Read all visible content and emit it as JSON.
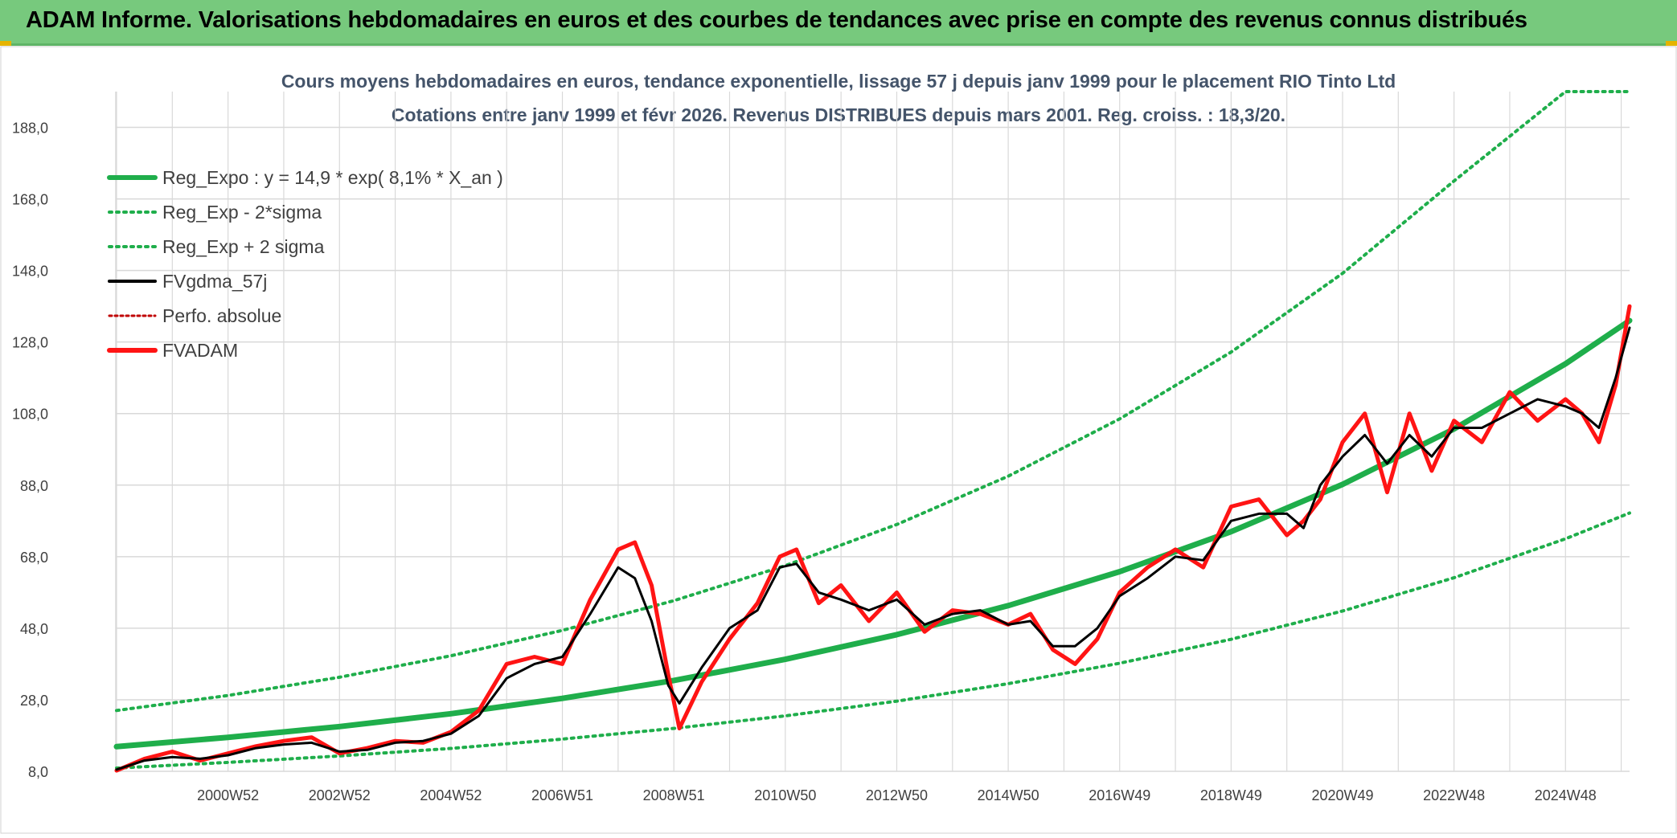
{
  "banner": {
    "title": "ADAM Informe. Valorisations hebdomadaires en euros et des courbes de tendances avec prise en compte des revenus connus distribués"
  },
  "colors": {
    "banner": "#77c97d",
    "reg_expo": "#1fae4b",
    "fvgdma": "#000000",
    "fvadam": "#ff1414",
    "perfo": "#c00000",
    "grid": "#d9d9d9"
  },
  "chart_data": {
    "type": "line",
    "title": "Cours moyens hebdomadaires en euros, tendance exponentielle, lissage 57 j depuis janv 1999 pour le placement RIO Tinto Ltd",
    "subtitle": "Cotations entre janv 1999 et févr 2026. Revenus DISTRIBUES depuis mars 2001. Reg. croiss. : 18,3/20.",
    "xlabel": "",
    "ylabel": "",
    "xlim": [
      1999.0,
      2026.15
    ],
    "ylim": [
      8.0,
      198.0
    ],
    "y_ticks": [
      "8,0",
      "28,0",
      "48,0",
      "68,0",
      "88,0",
      "108,0",
      "128,0",
      "148,0",
      "168,0",
      "188,0"
    ],
    "y_tick_values": [
      8,
      28,
      48,
      68,
      88,
      108,
      128,
      148,
      168,
      188
    ],
    "x_tick_labels": [
      "2000W52",
      "2002W52",
      "2004W52",
      "2006W51",
      "2008W51",
      "2010W50",
      "2012W50",
      "2014W50",
      "2016W49",
      "2018W49",
      "2020W49",
      "2022W48",
      "2024W48"
    ],
    "x_tick_years": [
      2001.0,
      2003.0,
      2005.0,
      2007.0,
      2009.0,
      2011.0,
      2013.0,
      2015.0,
      2017.0,
      2019.0,
      2021.0,
      2023.0,
      2025.0
    ],
    "grid": true,
    "legend_position": "top-left",
    "legend": [
      {
        "label": "Reg_Expo : y = 14,9 * exp( 8,1% *  X_an )",
        "style": "thick-green"
      },
      {
        "label": "Reg_Exp - 2*sigma",
        "style": "dotted-green"
      },
      {
        "label": "Reg_Exp + 2 sigma",
        "style": "dotted-green"
      },
      {
        "label": "FVgdma_57j",
        "style": "black"
      },
      {
        "label": "Perfo. absolue",
        "style": "dotted-red"
      },
      {
        "label": "FVADAM",
        "style": "thick-red"
      }
    ],
    "series": [
      {
        "name": "Reg_Expo",
        "x": [
          1999.0,
          2001.0,
          2003.0,
          2005.0,
          2007.0,
          2009.0,
          2011.0,
          2013.0,
          2015.0,
          2017.0,
          2019.0,
          2021.0,
          2023.0,
          2025.0,
          2026.15
        ],
        "values": [
          14.9,
          17.5,
          20.5,
          24.1,
          28.4,
          33.4,
          39.3,
          46.2,
          54.3,
          63.8,
          75.0,
          88.2,
          103.7,
          121.9,
          134.0
        ]
      },
      {
        "name": "Reg_Exp - 2*sigma",
        "x": [
          1999.0,
          2001.0,
          2003.0,
          2005.0,
          2007.0,
          2009.0,
          2011.0,
          2013.0,
          2015.0,
          2017.0,
          2019.0,
          2021.0,
          2023.0,
          2025.0,
          2026.15
        ],
        "values": [
          8.9,
          10.5,
          12.3,
          14.4,
          17.0,
          20.0,
          23.5,
          27.6,
          32.5,
          38.2,
          44.9,
          52.8,
          62.1,
          73.0,
          80.2
        ]
      },
      {
        "name": "Reg_Exp + 2 sigma",
        "x": [
          1999.0,
          2001.0,
          2003.0,
          2005.0,
          2007.0,
          2009.0,
          2011.0,
          2013.0,
          2015.0,
          2017.0,
          2019.0,
          2021.0,
          2023.0,
          2025.0,
          2026.15
        ],
        "values": [
          25.0,
          29.2,
          34.3,
          40.3,
          47.4,
          55.7,
          65.5,
          77.0,
          90.5,
          106.5,
          125.2,
          147.2,
          173.0,
          198.0,
          198.0
        ]
      },
      {
        "name": "FVgdma_57j",
        "x": [
          1999.0,
          1999.5,
          2000.0,
          2000.5,
          2001.0,
          2001.5,
          2002.0,
          2002.5,
          2003.0,
          2003.5,
          2004.0,
          2004.5,
          2005.0,
          2005.5,
          2006.0,
          2006.5,
          2007.0,
          2007.5,
          2008.0,
          2008.3,
          2008.6,
          2008.9,
          2009.1,
          2009.5,
          2010.0,
          2010.5,
          2010.9,
          2011.2,
          2011.6,
          2012.0,
          2012.5,
          2013.0,
          2013.5,
          2014.0,
          2014.5,
          2015.0,
          2015.4,
          2015.8,
          2016.2,
          2016.6,
          2017.0,
          2017.5,
          2018.0,
          2018.5,
          2019.0,
          2019.5,
          2020.0,
          2020.3,
          2020.6,
          2021.0,
          2021.4,
          2021.8,
          2022.2,
          2022.6,
          2023.0,
          2023.5,
          2024.0,
          2024.5,
          2025.0,
          2025.3,
          2025.6,
          2025.9,
          2026.15
        ],
        "values": [
          8.5,
          11.0,
          12.0,
          11.5,
          12.5,
          14.5,
          15.5,
          16.0,
          13.5,
          14.0,
          16.0,
          16.5,
          18.5,
          23.5,
          34.0,
          38.0,
          40.0,
          52.0,
          65.0,
          62.0,
          50.0,
          32.0,
          27.0,
          37.0,
          48.0,
          53.0,
          65.0,
          66.0,
          58.0,
          56.0,
          53.0,
          56.0,
          49.0,
          52.0,
          53.0,
          49.0,
          50.0,
          43.0,
          43.0,
          48.0,
          57.0,
          62.0,
          68.0,
          67.0,
          78.0,
          80.0,
          80.0,
          76.0,
          88.0,
          96.0,
          102.0,
          94.0,
          102.0,
          96.0,
          104.0,
          104.0,
          108.0,
          112.0,
          110.0,
          108.0,
          104.0,
          118.0,
          132.0
        ]
      },
      {
        "name": "FVADAM",
        "x": [
          1999.0,
          1999.5,
          2000.0,
          2000.5,
          2001.0,
          2001.5,
          2002.0,
          2002.5,
          2003.0,
          2003.5,
          2004.0,
          2004.5,
          2005.0,
          2005.5,
          2006.0,
          2006.5,
          2007.0,
          2007.5,
          2008.0,
          2008.3,
          2008.6,
          2008.9,
          2009.1,
          2009.5,
          2010.0,
          2010.5,
          2010.9,
          2011.2,
          2011.6,
          2012.0,
          2012.5,
          2013.0,
          2013.5,
          2014.0,
          2014.5,
          2015.0,
          2015.4,
          2015.8,
          2016.2,
          2016.6,
          2017.0,
          2017.5,
          2018.0,
          2018.5,
          2019.0,
          2019.5,
          2020.0,
          2020.3,
          2020.6,
          2021.0,
          2021.4,
          2021.8,
          2022.2,
          2022.6,
          2023.0,
          2023.5,
          2024.0,
          2024.5,
          2025.0,
          2025.3,
          2025.6,
          2025.9,
          2026.15
        ],
        "values": [
          8.2,
          11.5,
          13.5,
          11.0,
          13.0,
          15.0,
          16.5,
          17.5,
          13.0,
          14.5,
          16.5,
          16.0,
          19.0,
          25.0,
          38.0,
          40.0,
          38.0,
          56.0,
          70.0,
          72.0,
          60.0,
          35.0,
          20.0,
          33.0,
          45.0,
          55.0,
          68.0,
          70.0,
          55.0,
          60.0,
          50.0,
          58.0,
          47.0,
          53.0,
          52.0,
          49.0,
          52.0,
          42.0,
          38.0,
          45.0,
          58.0,
          65.0,
          70.0,
          65.0,
          82.0,
          84.0,
          74.0,
          78.0,
          84.0,
          100.0,
          108.0,
          86.0,
          108.0,
          92.0,
          106.0,
          100.0,
          114.0,
          106.0,
          112.0,
          108.0,
          100.0,
          116.0,
          138.0
        ]
      }
    ]
  }
}
